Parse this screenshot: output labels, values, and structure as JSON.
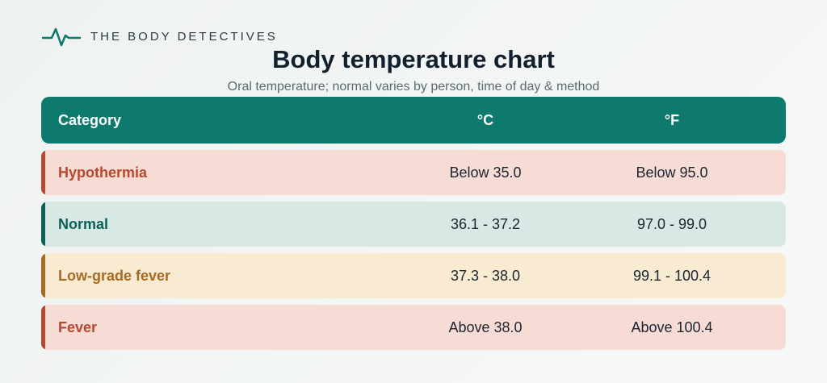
{
  "brand": {
    "name": "THE BODY DETECTIVES",
    "icon": "heartbeat-icon",
    "color": "#0e7a6d"
  },
  "title": "Body temperature chart",
  "subtitle": "Oral temperature; normal varies by person, time of day & method",
  "table": {
    "headers": {
      "category": "Category",
      "celsius": "°C",
      "fahrenheit": "°F"
    },
    "header_color": "#0e7a6d",
    "rows": [
      {
        "category": "Hypothermia",
        "celsius": "Below 35.0",
        "fahrenheit": "Below 95.0",
        "bg": "#f7dbd5",
        "accent": "#b8482e"
      },
      {
        "category": "Normal",
        "celsius": "36.1 - 37.2",
        "fahrenheit": "97.0 - 99.0",
        "bg": "#d8e8e5",
        "accent": "#0c6157"
      },
      {
        "category": "Low-grade fever",
        "celsius": "37.3 - 38.0",
        "fahrenheit": "99.1 - 100.4",
        "bg": "#f9ebd2",
        "accent": "#a86a22"
      },
      {
        "category": "Fever",
        "celsius": "Above 38.0",
        "fahrenheit": "Above 100.4",
        "bg": "#f7dbd5",
        "accent": "#b8482e"
      }
    ]
  }
}
